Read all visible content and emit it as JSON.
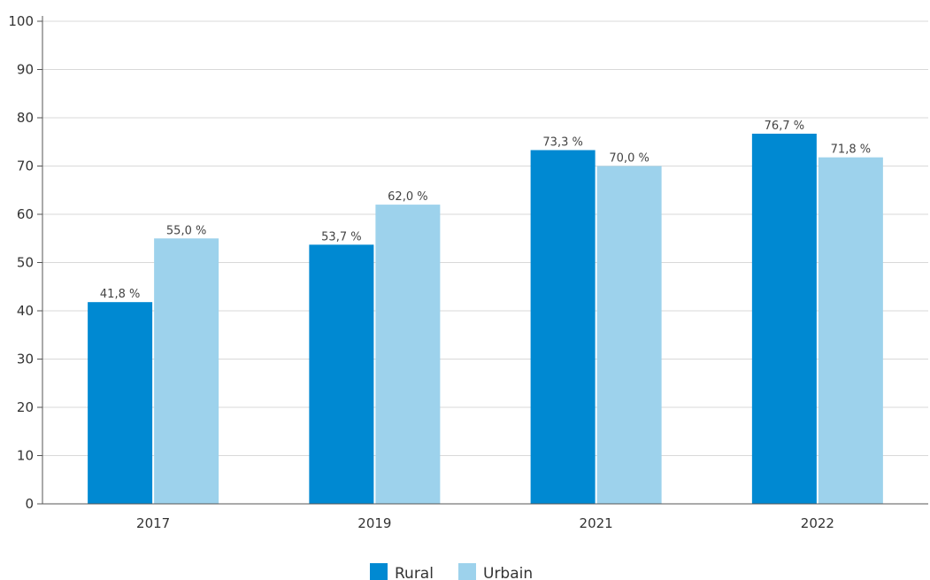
{
  "chart_data": {
    "type": "bar",
    "categories": [
      "2017",
      "2019",
      "2021",
      "2022"
    ],
    "series": [
      {
        "name": "Rural",
        "values": [
          41.8,
          53.7,
          73.3,
          76.7
        ],
        "labels": [
          "41,8 %",
          "53,7 %",
          "73,3 %",
          "76,7 %"
        ],
        "color": "#0089D2"
      },
      {
        "name": "Urbain",
        "values": [
          55.0,
          62.0,
          70.0,
          71.8
        ],
        "labels": [
          "55,0 %",
          "62,0 %",
          "70,0 %",
          "71,8 %"
        ],
        "color": "#9DD2EC"
      }
    ],
    "ylim": [
      0,
      100
    ],
    "yticks": [
      "0",
      "10",
      "20",
      "30",
      "40",
      "50",
      "60",
      "70",
      "80",
      "90",
      "100"
    ],
    "grid": true,
    "legend_position": "bottom-center"
  }
}
